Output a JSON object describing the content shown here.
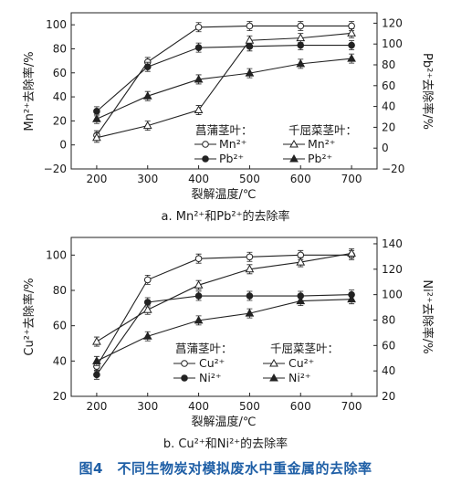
{
  "figure_caption": "图4　不同生物炭对模拟废水中重金属的去除率",
  "chart_data": [
    {
      "type": "line",
      "caption": "a. Mn²⁺和Pb²⁺的去除率",
      "xlabel": "裂解温度/℃",
      "ylabel_left": "Mn²⁺去除率/%",
      "ylabel_right": "Pb²⁺去除率/%",
      "x": [
        200,
        300,
        400,
        500,
        600,
        700
      ],
      "xticks": [
        "200",
        "300",
        "400",
        "500",
        "600",
        "700"
      ],
      "ylim_left": [
        -20,
        110
      ],
      "yticks_left": [
        "−20",
        "0",
        "20",
        "40",
        "60",
        "80",
        "100"
      ],
      "ylim_right": [
        -20,
        130
      ],
      "yticks_right": [
        "−20",
        "0",
        "20",
        "40",
        "60",
        "80",
        "100",
        "120"
      ],
      "legend": {
        "group1": "菖蒲茎叶：",
        "group2": "千屈菜茎叶：",
        "ion1": "Mn²⁺",
        "ion2": "Pb²⁺"
      },
      "series": [
        {
          "name": "Mn²⁺",
          "group": "菖蒲茎叶",
          "axis": "left",
          "marker": "circle-open",
          "values": [
            8,
            69,
            98,
            99,
            99,
            99
          ]
        },
        {
          "name": "Pb²⁺",
          "group": "菖蒲茎叶",
          "axis": "left",
          "marker": "circle-filled",
          "values": [
            28,
            65,
            81,
            82,
            83,
            83
          ]
        },
        {
          "name": "Mn²⁺",
          "group": "千屈菜茎叶",
          "axis": "left",
          "marker": "triangle-open",
          "values": [
            6,
            16,
            29,
            87,
            89,
            93
          ]
        },
        {
          "name": "Pb²⁺",
          "group": "千屈菜茎叶",
          "axis": "right",
          "marker": "triangle-filled",
          "values": [
            28,
            50,
            66,
            72,
            81,
            86
          ]
        }
      ]
    },
    {
      "type": "line",
      "caption": "b. Cu²⁺和Ni²⁺的去除率",
      "xlabel": "裂解温度/℃",
      "ylabel_left": "Cu²⁺去除率/%",
      "ylabel_right": "Ni²⁺去除率/%",
      "x": [
        200,
        300,
        400,
        500,
        600,
        700
      ],
      "xticks": [
        "200",
        "300",
        "400",
        "500",
        "600",
        "700"
      ],
      "ylim_left": [
        20,
        110
      ],
      "yticks_left": [
        "20",
        "40",
        "60",
        "80",
        "100"
      ],
      "ylim_right": [
        20,
        145
      ],
      "yticks_right": [
        "20",
        "40",
        "60",
        "80",
        "100",
        "120",
        "140"
      ],
      "legend": {
        "group1": "菖蒲茎叶：",
        "group2": "千屈菜茎叶：",
        "ion1": "Cu²⁺",
        "ion2": "Ni²⁺"
      },
      "series": [
        {
          "name": "Cu²⁺",
          "group": "菖蒲茎叶",
          "axis": "left",
          "marker": "circle-open",
          "values": [
            37,
            86,
            98,
            99,
            100,
            100
          ]
        },
        {
          "name": "Ni²⁺",
          "group": "菖蒲茎叶",
          "axis": "right",
          "marker": "circle-filled",
          "values": [
            37,
            94,
            99,
            99,
            99,
            100
          ]
        },
        {
          "name": "Cu²⁺",
          "group": "千屈菜茎叶",
          "axis": "left",
          "marker": "triangle-open",
          "values": [
            51,
            69,
            83,
            92,
            96,
            101
          ]
        },
        {
          "name": "Ni²⁺",
          "group": "千屈菜茎叶",
          "axis": "left",
          "marker": "triangle-filled",
          "values": [
            40,
            54,
            63,
            67,
            74,
            75
          ]
        }
      ]
    }
  ]
}
